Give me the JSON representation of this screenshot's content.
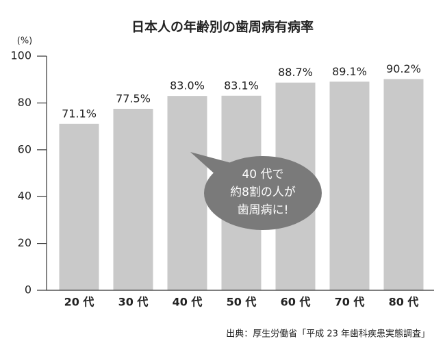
{
  "chart_data": {
    "type": "bar",
    "title": "日本人の年齢別の歯周病有病率",
    "y_label": "(%)",
    "categories": [
      "20 代",
      "30 代",
      "40 代",
      "50 代",
      "60 代",
      "70 代",
      "80 代"
    ],
    "values": [
      71.1,
      77.5,
      83.0,
      83.1,
      88.7,
      89.1,
      90.2
    ],
    "value_labels": [
      "71.1%",
      "77.5%",
      "83.0%",
      "83.1%",
      "88.7%",
      "89.1%",
      "90.2%"
    ],
    "color": "#c9c9c9",
    "ylim": [
      0,
      100
    ],
    "yticks": [
      0,
      20,
      40,
      60,
      80,
      100
    ],
    "annotation": [
      "40 代で",
      "約8割の人が",
      "歯周病に!"
    ],
    "source": "出典：厚生労働省「平成 23 年歯科疾患実態調査」"
  }
}
